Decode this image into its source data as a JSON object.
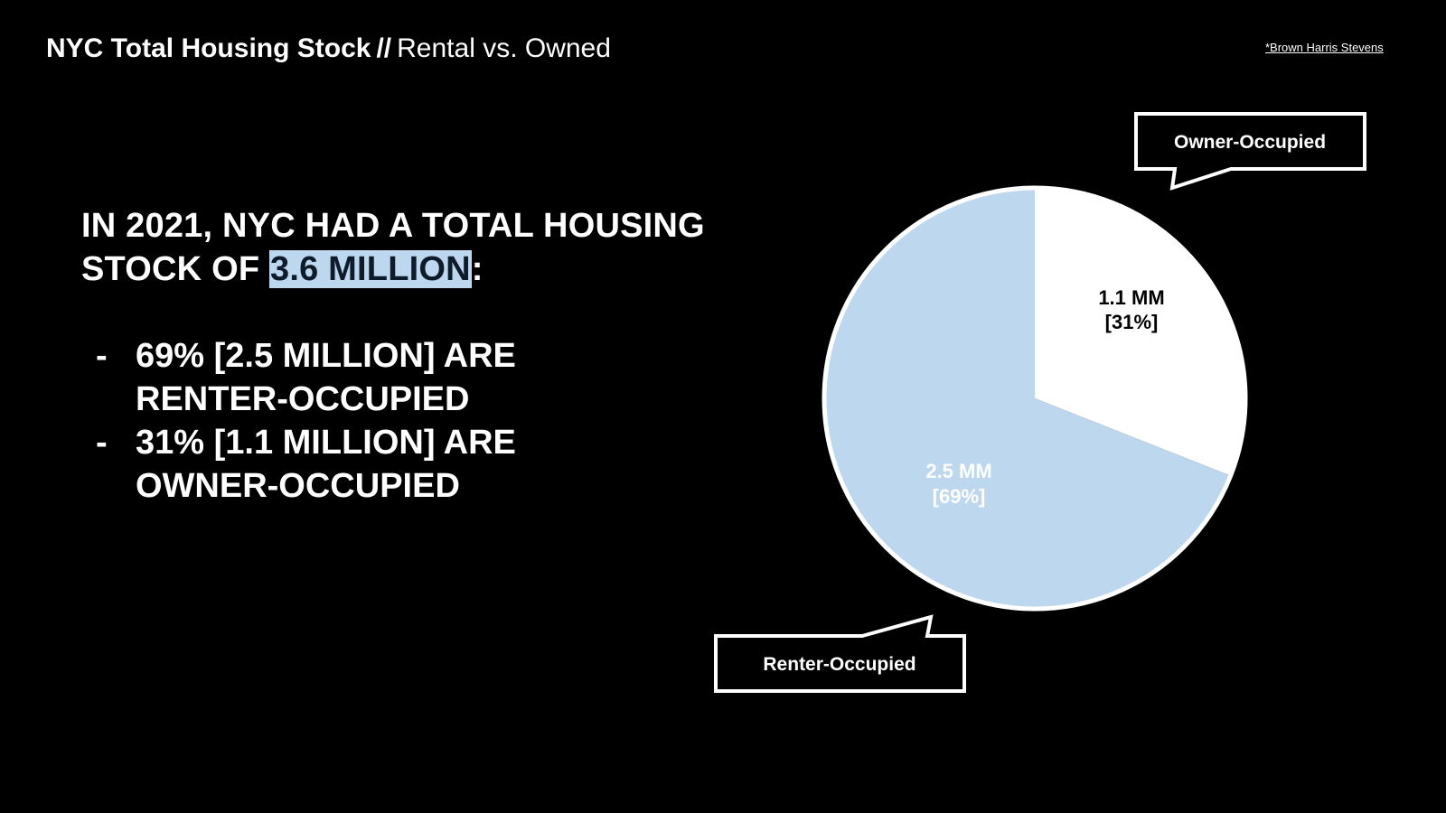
{
  "header": {
    "title_bold": "NYC Total Housing Stock",
    "title_separator": "//",
    "title_light": "Rental vs. Owned",
    "source": "*Brown Harris Stevens"
  },
  "headline": {
    "prefix": "IN 2021, NYC HAD A TOTAL HOUSING STOCK OF ",
    "highlight": "3.6 MILLION",
    "suffix": ":"
  },
  "bullets": [
    {
      "dash": "-",
      "text": "69% [2.5 MILLION] ARE RENTER-OCCUPIED"
    },
    {
      "dash": "-",
      "text": "31% [1.1 MILLION] ARE OWNER-OCCUPIED"
    }
  ],
  "colors": {
    "background": "#000000",
    "owner_slice": "#ffffff",
    "renter_slice": "#bdd7ee",
    "highlight": "#bdd7ee",
    "text": "#ffffff"
  },
  "chart_data": {
    "type": "pie",
    "title": "",
    "slices": [
      {
        "label": "Owner-Occupied",
        "value": 1.1,
        "percent": 31,
        "value_text": "1.1 MM",
        "percent_text": "[31%]",
        "color": "#ffffff",
        "label_color": "#000000"
      },
      {
        "label": "Renter-Occupied",
        "value": 2.5,
        "percent": 69,
        "value_text": "2.5 MM",
        "percent_text": "[69%]",
        "color": "#bdd7ee",
        "label_color": "#ffffff"
      }
    ],
    "legend": "callouts"
  }
}
